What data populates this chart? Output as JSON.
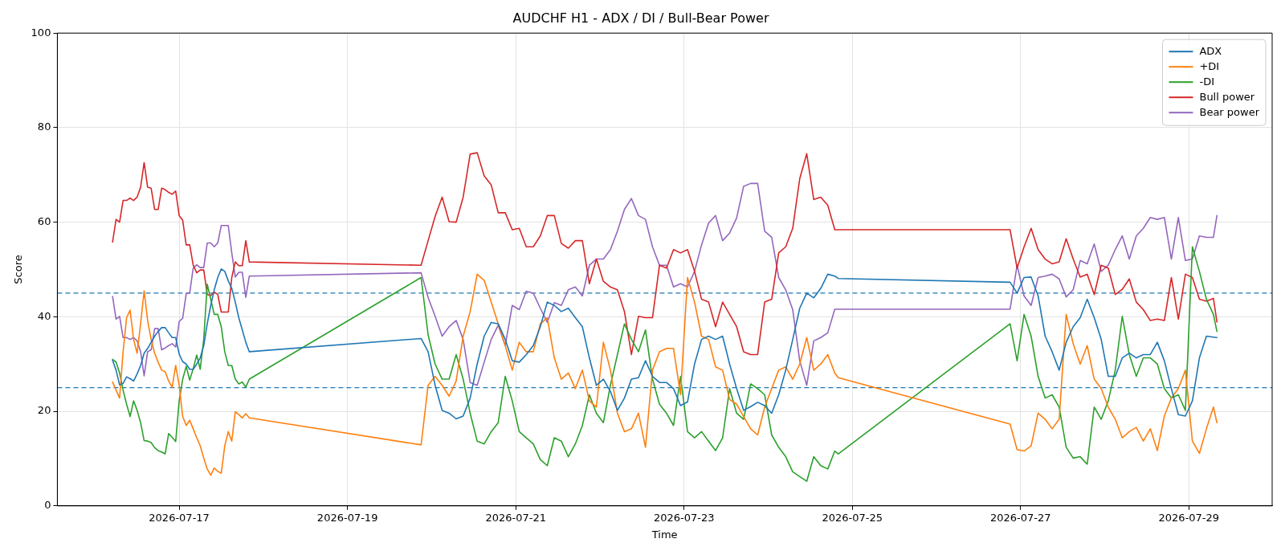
{
  "chart_data": {
    "type": "line",
    "title": "AUDCHF H1 - ADX / DI / Bull-Bear Power",
    "xlabel": "Time",
    "ylabel": "Score",
    "x": [
      "2026-07-16T05:00",
      "2026-07-16T06:00",
      "2026-07-16T07:00",
      "2026-07-16T08:00",
      "2026-07-16T09:00",
      "2026-07-16T10:00",
      "2026-07-16T11:00",
      "2026-07-16T12:00",
      "2026-07-16T13:00",
      "2026-07-16T14:00",
      "2026-07-16T15:00",
      "2026-07-16T16:00",
      "2026-07-16T17:00",
      "2026-07-16T18:00",
      "2026-07-16T19:00",
      "2026-07-16T20:00",
      "2026-07-16T21:00",
      "2026-07-16T22:00",
      "2026-07-16T23:00",
      "2026-07-17T00:00",
      "2026-07-17T01:00",
      "2026-07-17T02:00",
      "2026-07-17T03:00",
      "2026-07-17T04:00",
      "2026-07-17T05:00",
      "2026-07-17T06:00",
      "2026-07-17T07:00",
      "2026-07-17T08:00",
      "2026-07-17T09:00",
      "2026-07-17T10:00",
      "2026-07-17T11:00",
      "2026-07-17T12:00",
      "2026-07-17T13:00",
      "2026-07-17T14:00",
      "2026-07-17T15:00",
      "2026-07-17T16:00",
      "2026-07-17T17:00",
      "2026-07-17T18:00",
      "2026-07-17T19:00",
      "2026-07-17T20:00",
      "2026-07-19T21:00",
      "2026-07-19T23:00",
      "2026-07-20T01:00",
      "2026-07-20T03:00",
      "2026-07-20T05:00",
      "2026-07-20T07:00",
      "2026-07-20T09:00",
      "2026-07-20T11:00",
      "2026-07-20T13:00",
      "2026-07-20T15:00",
      "2026-07-20T17:00",
      "2026-07-20T19:00",
      "2026-07-20T21:00",
      "2026-07-20T23:00",
      "2026-07-21T01:00",
      "2026-07-21T03:00",
      "2026-07-21T05:00",
      "2026-07-21T07:00",
      "2026-07-21T09:00",
      "2026-07-21T11:00",
      "2026-07-21T13:00",
      "2026-07-21T15:00",
      "2026-07-21T17:00",
      "2026-07-21T19:00",
      "2026-07-21T21:00",
      "2026-07-21T23:00",
      "2026-07-22T01:00",
      "2026-07-22T03:00",
      "2026-07-22T05:00",
      "2026-07-22T07:00",
      "2026-07-22T09:00",
      "2026-07-22T11:00",
      "2026-07-22T13:00",
      "2026-07-22T15:00",
      "2026-07-22T17:00",
      "2026-07-22T19:00",
      "2026-07-22T21:00",
      "2026-07-22T23:00",
      "2026-07-23T01:00",
      "2026-07-23T03:00",
      "2026-07-23T05:00",
      "2026-07-23T07:00",
      "2026-07-23T09:00",
      "2026-07-23T11:00",
      "2026-07-23T13:00",
      "2026-07-23T15:00",
      "2026-07-23T17:00",
      "2026-07-23T19:00",
      "2026-07-23T21:00",
      "2026-07-23T23:00",
      "2026-07-24T01:00",
      "2026-07-24T03:00",
      "2026-07-24T05:00",
      "2026-07-24T07:00",
      "2026-07-24T09:00",
      "2026-07-24T11:00",
      "2026-07-24T13:00",
      "2026-07-24T15:00",
      "2026-07-24T17:00",
      "2026-07-24T19:00",
      "2026-07-24T20:00",
      "2026-07-26T21:00",
      "2026-07-26T23:00",
      "2026-07-27T01:00",
      "2026-07-27T03:00",
      "2026-07-27T05:00",
      "2026-07-27T07:00",
      "2026-07-27T09:00",
      "2026-07-27T11:00",
      "2026-07-27T13:00",
      "2026-07-27T15:00",
      "2026-07-27T17:00",
      "2026-07-27T19:00",
      "2026-07-27T21:00",
      "2026-07-27T23:00",
      "2026-07-28T01:00",
      "2026-07-28T03:00",
      "2026-07-28T05:00",
      "2026-07-28T07:00",
      "2026-07-28T09:00",
      "2026-07-28T11:00",
      "2026-07-28T13:00",
      "2026-07-28T15:00",
      "2026-07-28T17:00",
      "2026-07-28T19:00",
      "2026-07-28T21:00",
      "2026-07-28T23:00",
      "2026-07-29T01:00",
      "2026-07-29T03:00",
      "2026-07-29T05:00",
      "2026-07-29T07:00",
      "2026-07-29T08:00"
    ],
    "series": [
      {
        "name": "ADX",
        "color": "#1f77b4",
        "values": [
          30.8,
          28.7,
          25.6,
          25.9,
          27.3,
          26.9,
          26.4,
          27.9,
          29.7,
          32.3,
          33.3,
          34.6,
          35.9,
          36.9,
          37.7,
          37.7,
          36.6,
          35.6,
          35.6,
          32.1,
          30.5,
          30,
          28.9,
          28.9,
          30,
          31.3,
          33.9,
          38.5,
          42.4,
          45.7,
          48.3,
          50.1,
          49.6,
          47.6,
          46,
          43.1,
          39.8,
          37.2,
          34.6,
          32.6,
          35.4,
          32.6,
          25.5,
          20.2,
          19.6,
          18.4,
          19,
          22.8,
          30,
          35.9,
          38.8,
          38.5,
          35.2,
          30.7,
          30.4,
          32,
          33.9,
          37.9,
          43.1,
          42.4,
          41.1,
          41.8,
          39.8,
          37.9,
          31.3,
          25.5,
          26.8,
          24.2,
          20.2,
          22.8,
          26.8,
          27.1,
          30.7,
          27.4,
          26.1,
          26.1,
          24.8,
          21.2,
          22,
          30,
          35.2,
          35.9,
          35.2,
          35.9,
          30,
          24.8,
          20.2,
          21,
          21.9,
          21.2,
          19.6,
          23.5,
          28.7,
          35.2,
          41.8,
          45,
          44,
          46,
          49,
          48.6,
          48.1,
          47.3,
          45,
          48.3,
          48.4,
          44.4,
          35.9,
          32.6,
          28.7,
          34.6,
          37.9,
          39.8,
          43.7,
          39.8,
          35.2,
          27.4,
          27.4,
          31.3,
          32.3,
          31.3,
          32,
          32,
          34.6,
          30.7,
          24.8,
          19.3,
          19,
          22.2,
          31.3,
          35.9,
          35.7,
          35.6
        ]
      },
      {
        "name": "+DI",
        "color": "#ff7f0e",
        "values": [
          26.2,
          24.5,
          22.8,
          32.6,
          39.8,
          41.4,
          35.2,
          32.3,
          38.5,
          45.5,
          39.2,
          35.2,
          32.3,
          30.4,
          28.7,
          28.4,
          26.4,
          25.1,
          29.7,
          25.5,
          18.9,
          17,
          18.1,
          16.3,
          14.4,
          12.7,
          10.1,
          7.8,
          6.5,
          8,
          7.3,
          6.9,
          12.7,
          15.7,
          13.7,
          19.9,
          19.3,
          18.6,
          19.5,
          18.6,
          12.9,
          25.5,
          27.4,
          25.5,
          23.2,
          26.4,
          35.9,
          41.1,
          49,
          47.7,
          43.1,
          38.5,
          33.9,
          28.7,
          34.6,
          32.6,
          32.6,
          38.5,
          39.8,
          31.3,
          26.8,
          28.1,
          24.8,
          28.7,
          22.2,
          20.9,
          34.6,
          28.7,
          19.6,
          15.7,
          16.3,
          19.6,
          12.4,
          28.7,
          32.6,
          33.3,
          33.3,
          23.5,
          48.3,
          43.1,
          35.9,
          35.2,
          29.4,
          28.7,
          22.5,
          21.5,
          18.9,
          16.3,
          15,
          20.9,
          24.8,
          28.7,
          29.4,
          26.8,
          30,
          35.6,
          28.7,
          30,
          32,
          28.1,
          27.1,
          17.3,
          11.9,
          11.6,
          12.7,
          19.6,
          18.3,
          16.3,
          18.3,
          40.5,
          34.3,
          30,
          33.9,
          26.8,
          24.8,
          20.9,
          18.3,
          14.4,
          15.7,
          16.6,
          13.7,
          16.3,
          11.7,
          19,
          22.8,
          24.8,
          28.7,
          13.7,
          11.1,
          16.3,
          20.9,
          17.6
        ]
      },
      {
        "name": "-DI",
        "color": "#2ca02c",
        "values": [
          31,
          30.4,
          28.1,
          24.5,
          21.5,
          18.9,
          22.2,
          20.2,
          17.6,
          13.8,
          13.7,
          13.4,
          12.3,
          11.7,
          11.4,
          11,
          15.3,
          14.5,
          13.6,
          22.2,
          26.8,
          29.5,
          26.6,
          29,
          31.9,
          28.9,
          35.2,
          46.9,
          43.7,
          40.5,
          40.5,
          37.9,
          32.6,
          29.7,
          29.7,
          26.8,
          25.8,
          26.2,
          25.1,
          26.8,
          48.3,
          36.2,
          30,
          26.8,
          26.8,
          32,
          26.8,
          19.6,
          13.7,
          13.1,
          15.7,
          17.6,
          27.4,
          22.2,
          15.7,
          14.4,
          13.1,
          9.8,
          8.5,
          14.4,
          13.7,
          10.4,
          13.1,
          17,
          23.5,
          19.6,
          17.6,
          25.5,
          32,
          38.5,
          35.2,
          32.6,
          37.2,
          26.8,
          21.5,
          19.6,
          17,
          27.4,
          15.7,
          14.4,
          15.7,
          13.7,
          11.7,
          14.4,
          24.8,
          19.6,
          18.3,
          25.8,
          24.8,
          23.5,
          15,
          12.4,
          10.4,
          7.2,
          6.2,
          5.2,
          10.4,
          8.5,
          7.8,
          11.6,
          11,
          38.5,
          30.7,
          40.5,
          35.9,
          27.4,
          22.8,
          23.5,
          20.9,
          12.4,
          10.1,
          10.4,
          8.8,
          20.9,
          18.3,
          22.2,
          28.7,
          40.1,
          32,
          27.4,
          31.3,
          31.3,
          30,
          24.8,
          22.8,
          23.5,
          20.2,
          54.8,
          49.6,
          43.7,
          40.5,
          36.9
        ]
      },
      {
        "name": "Bull power",
        "color": "#d62728",
        "values": [
          55.8,
          60.6,
          60,
          64.6,
          64.6,
          65.1,
          64.6,
          65.3,
          67.4,
          72.6,
          67.4,
          67.2,
          62.7,
          62.7,
          67.2,
          66.9,
          66.3,
          65.9,
          66.6,
          61.4,
          60.4,
          55.2,
          55.2,
          50.9,
          49.3,
          49.9,
          49.9,
          44.7,
          44.5,
          45.2,
          44.7,
          41,
          41,
          41,
          48.3,
          51.6,
          50.8,
          50.8,
          56.1,
          51.6,
          50.9,
          56.1,
          61.2,
          65.3,
          60.1,
          60,
          65.3,
          74.4,
          74.7,
          69.8,
          67.9,
          62,
          62,
          58.4,
          58.7,
          54.8,
          54.8,
          57.1,
          61.4,
          61.4,
          55.5,
          54.5,
          56.1,
          56.1,
          47,
          52.2,
          47.5,
          46.3,
          45.7,
          41.1,
          32,
          40.1,
          39.8,
          39.8,
          50.9,
          50.3,
          54.2,
          53.5,
          54.2,
          49.6,
          43.7,
          43.1,
          37.9,
          43.1,
          40.5,
          37.9,
          32.6,
          32,
          32,
          43.1,
          43.7,
          53.5,
          54.8,
          58.7,
          69.2,
          74.5,
          64.8,
          65.3,
          63.6,
          58.4,
          58.4,
          58.4,
          50.3,
          54.8,
          58.7,
          54.2,
          52.2,
          51.2,
          51.6,
          56.5,
          52.2,
          48.4,
          49,
          44.7,
          50.9,
          50.3,
          44.7,
          45.8,
          48,
          43.1,
          41.5,
          39.2,
          39.5,
          39.2,
          48.3,
          39.5,
          49,
          48.3,
          43.7,
          43.3,
          43.9,
          38.9
        ]
      },
      {
        "name": "Bear power",
        "color": "#9467bd",
        "values": [
          44.3,
          39.5,
          40.1,
          35.6,
          35.6,
          35.2,
          35.6,
          34.9,
          32.6,
          27.5,
          32.6,
          33,
          37.5,
          37.5,
          33,
          33.4,
          33.9,
          34.3,
          33.6,
          39,
          39.7,
          44.9,
          45,
          50.3,
          51,
          50.4,
          50.4,
          55.6,
          55.6,
          54.8,
          55.6,
          59.3,
          59.3,
          59.3,
          53.5,
          48.4,
          49.4,
          49.4,
          44.1,
          48.6,
          49.3,
          44.1,
          40.1,
          35.9,
          37.9,
          39.2,
          35.2,
          26.1,
          25.5,
          30.4,
          35.2,
          38.2,
          33.9,
          42.4,
          41.5,
          45.4,
          45,
          41.8,
          38.8,
          43,
          42.4,
          45.7,
          46.3,
          44.4,
          50.9,
          52.2,
          52.2,
          54.2,
          58.1,
          62.7,
          65,
          61.4,
          60.6,
          54.8,
          50.9,
          50.9,
          46.3,
          47,
          46.3,
          49.6,
          55.2,
          59.8,
          61.4,
          56.1,
          57.7,
          60.9,
          67.6,
          68.2,
          68.2,
          58.1,
          56.8,
          48.3,
          45.7,
          41.5,
          30.7,
          25.5,
          34.9,
          35.6,
          36.6,
          41.6,
          41.6,
          41.6,
          50.9,
          44.4,
          42.4,
          48.3,
          48.6,
          49,
          48,
          44.2,
          45.7,
          51.9,
          51.2,
          55.4,
          49.6,
          50.9,
          54.2,
          57.1,
          52.2,
          57.1,
          58.7,
          61,
          60.6,
          61,
          52.2,
          61,
          51.9,
          52.2,
          57.1,
          56.8,
          56.8,
          61.4
        ]
      }
    ],
    "xlim": [
      "2026-07-15T13:15",
      "2026-07-29T23:45"
    ],
    "xticks": [
      "2026-07-17",
      "2026-07-19",
      "2026-07-21",
      "2026-07-23",
      "2026-07-25",
      "2026-07-27",
      "2026-07-29"
    ],
    "ylim": [
      0,
      100
    ],
    "yticks": [
      0,
      20,
      40,
      60,
      80,
      100
    ],
    "ref_lines": [
      {
        "axis": "y",
        "value": 25,
        "color": "#1f77b4",
        "line_style": "dashed"
      },
      {
        "axis": "y",
        "value": 45,
        "color": "#1f77b4",
        "line_style": "dashed"
      }
    ],
    "grid": true,
    "legend": "top right"
  }
}
